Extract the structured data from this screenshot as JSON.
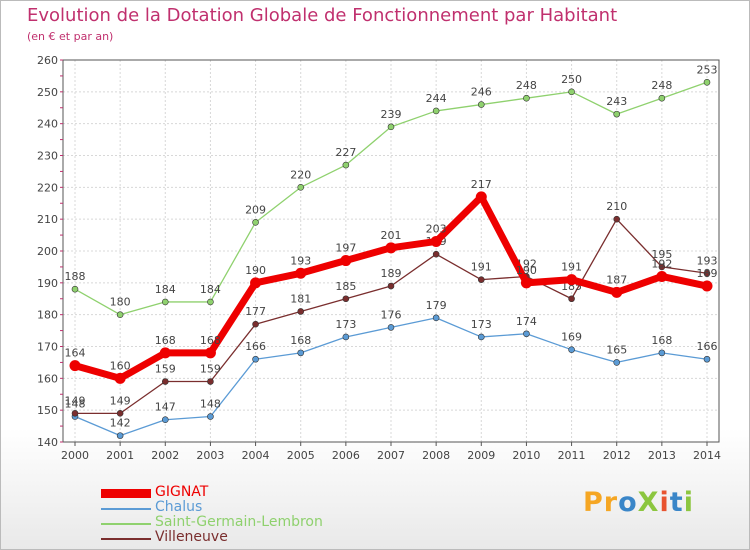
{
  "title": "Evolution de la Dotation Globale de Fonctionnement par Habitant",
  "subtitle": "(en € et par an)",
  "logo_text": "ProXiti",
  "chart_data": {
    "type": "line",
    "title": "Evolution de la Dotation Globale de Fonctionnement par Habitant",
    "subtitle": "(en € et par an)",
    "xlabel": "",
    "ylabel": "",
    "x": [
      "2000",
      "2001",
      "2002",
      "2003",
      "2004",
      "2005",
      "2006",
      "2007",
      "2008",
      "2009",
      "2010",
      "2011",
      "2012",
      "2013",
      "2014"
    ],
    "yticks": [
      140,
      150,
      160,
      170,
      180,
      190,
      200,
      210,
      220,
      230,
      240,
      250,
      260
    ],
    "ylim": [
      140,
      260
    ],
    "grid": true,
    "legend": "bottom-left",
    "series": [
      {
        "name": "GIGNAT",
        "color": "#ee0000",
        "values": [
          164,
          160,
          168,
          168,
          190,
          193,
          197,
          201,
          203,
          217,
          190,
          191,
          187,
          192,
          189
        ]
      },
      {
        "name": "Chalus",
        "color": "#5b9bd5",
        "values": [
          148,
          142,
          147,
          148,
          166,
          168,
          173,
          176,
          179,
          173,
          174,
          169,
          165,
          168,
          166
        ]
      },
      {
        "name": "Saint-Germain-Lembron",
        "color": "#8fd16e",
        "values": [
          188,
          180,
          184,
          184,
          209,
          220,
          227,
          239,
          244,
          246,
          248,
          250,
          243,
          248,
          253
        ]
      },
      {
        "name": "Villeneuve",
        "color": "#7a2e2e",
        "values": [
          149,
          149,
          159,
          159,
          177,
          181,
          185,
          189,
          199,
          191,
          192,
          185,
          210,
          195,
          193
        ]
      }
    ]
  }
}
